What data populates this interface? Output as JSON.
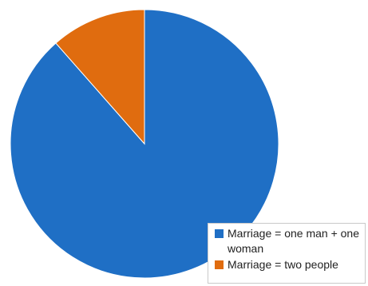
{
  "chart_data": {
    "type": "pie",
    "title": "",
    "slices": [
      {
        "label": "Marriage = one man + one woman",
        "value": 88.5,
        "color": "#1f6fc5"
      },
      {
        "label": "Marriage = two people",
        "value": 11.5,
        "color": "#e06c0f"
      }
    ],
    "start_angle_deg": 0,
    "direction": "clockwise",
    "legend_position": "bottom-right"
  },
  "legend": {
    "items": [
      {
        "label": "Marriage = one man + one woman",
        "color": "#1f6fc5"
      },
      {
        "label": "Marriage = two people",
        "color": "#e06c0f"
      }
    ]
  }
}
